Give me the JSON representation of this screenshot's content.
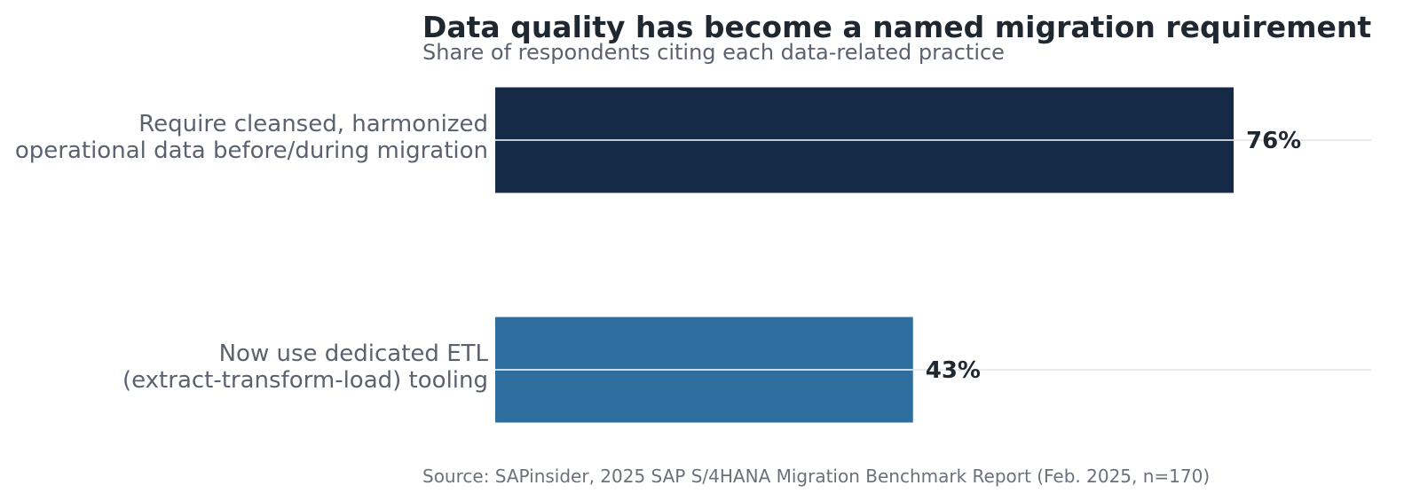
{
  "chart_data": {
    "type": "bar",
    "orientation": "horizontal",
    "title": "Data quality has become a named migration requirement",
    "subtitle": "Share of respondents citing each data-related practice",
    "source": "Source: SAPinsider, 2025 SAP S/4HANA Migration Benchmark Report (Feb. 2025, n=170)",
    "categories": [
      [
        "Require cleansed, harmonized",
        "operational data before/during migration"
      ],
      [
        "Now use dedicated ETL",
        "(extract-transform-load) tooling"
      ]
    ],
    "values": [
      76,
      43
    ],
    "value_labels": [
      "76%",
      "43%"
    ],
    "unit": "%",
    "xlim": [
      0,
      90
    ],
    "bar_colors": [
      "#142a47",
      "#2e6e9e"
    ],
    "grid": false,
    "legend": "none"
  },
  "colors": {
    "title": "#1f2731",
    "subtitle": "#5a6270",
    "category_label": "#5a6270",
    "value_label": "#1f2731",
    "source": "#6b717a",
    "guide_line": "#e2e4e8",
    "bar_midline": "#ffffff"
  }
}
